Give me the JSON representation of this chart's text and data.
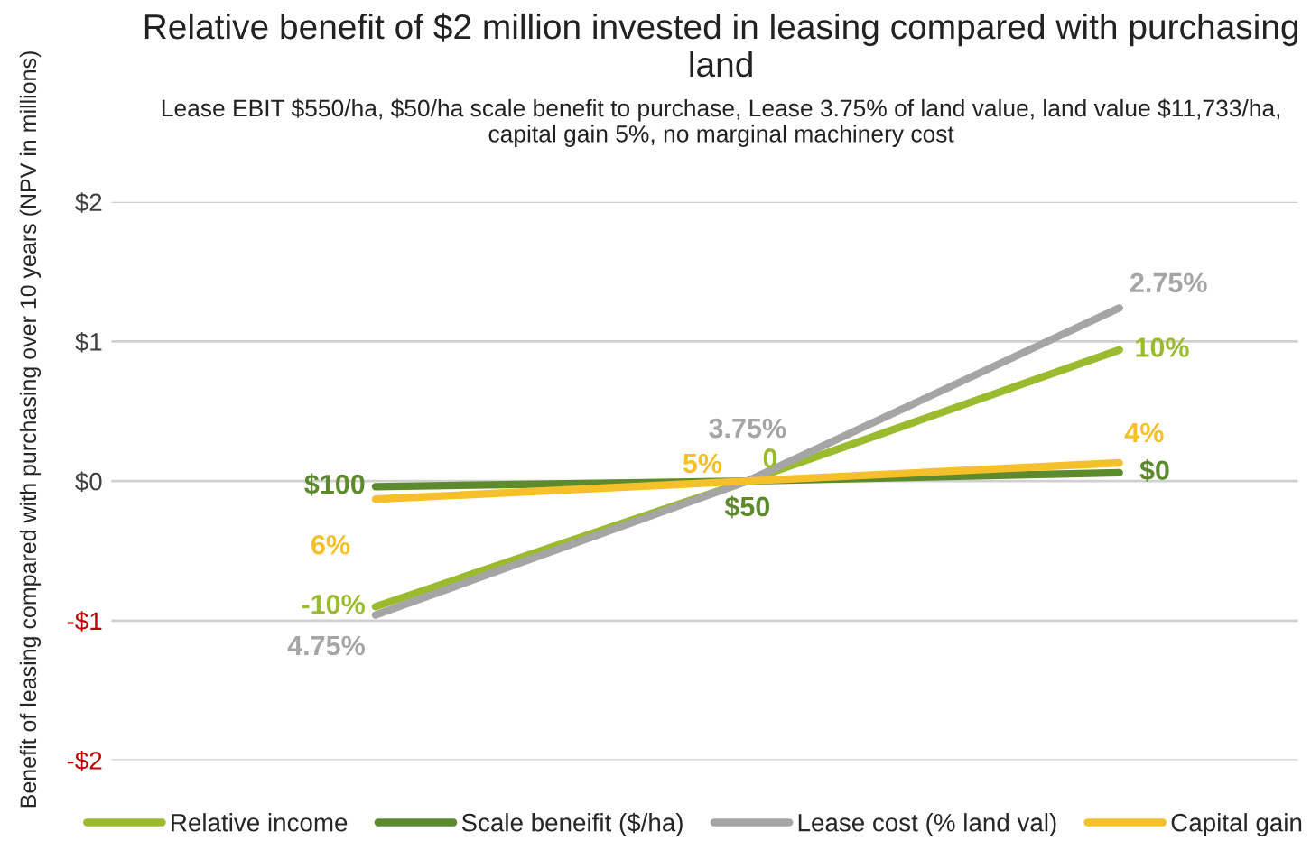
{
  "chart_data": {
    "type": "line",
    "title": "Relative benefit of $2 million invested in leasing compared with purchasing land",
    "subtitle": "Lease EBIT $550/ha, $50/ha scale benefit to purchase, Lease 3.75% of land value, land value $11,733/ha, capital gain 5%, no marginal machinery cost",
    "ylabel": "Benefit of leasing compared with purchasing over 10 years (NPV in millions)",
    "categories": [
      null,
      null,
      null
    ],
    "series": [
      {
        "name": "Relative income",
        "color": "#9bbb2f",
        "values": [
          -0.9,
          0,
          0.94
        ]
      },
      {
        "name": "Scale beneifit ($/ha)",
        "color": "#5e8a2e",
        "values": [
          -0.04,
          0,
          0.06
        ]
      },
      {
        "name": "Lease cost (% land val)",
        "color": "#a5a5a5",
        "values": [
          -0.96,
          0,
          1.24
        ]
      },
      {
        "name": "Capital gain",
        "color": "#f5c02a",
        "values": [
          -0.13,
          0,
          0.13
        ]
      }
    ],
    "annotations": [
      "-10%",
      "0",
      "10%",
      "$100",
      "$50",
      "$0",
      "4.75%",
      "3.75%",
      "2.75%",
      "6%",
      "5%",
      "4%"
    ],
    "ylim": [
      -2,
      2
    ],
    "yticks": [
      {
        "value": 2,
        "label": "$2"
      },
      {
        "value": 1,
        "label": "$1"
      },
      {
        "value": 0,
        "label": "$0"
      },
      {
        "value": -1,
        "label": "-$1"
      },
      {
        "value": -2,
        "label": "-$2"
      }
    ],
    "grid": "y",
    "legend": "bottom",
    "tick_labels": "y",
    "marker": "none",
    "line_style": "solid"
  }
}
